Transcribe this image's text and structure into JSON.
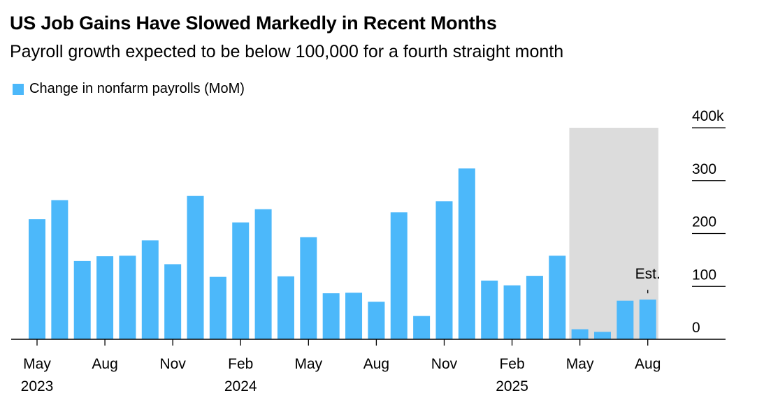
{
  "header": {
    "title": "US Job Gains Have Slowed Markedly in Recent Months",
    "subtitle": "Payroll growth expected to be below 100,000 for a fourth straight month"
  },
  "colors": {
    "bar": "#4cb8fa",
    "shade": "#dcdcdc",
    "axis": "#000000"
  },
  "chart_data": {
    "type": "bar",
    "title": "US Job Gains Have Slowed Markedly in Recent Months",
    "subtitle": "Payroll growth expected to be below 100,000 for a fourth straight month",
    "series": [
      {
        "name": "Change in nonfarm payrolls (MoM)",
        "values": [
          227,
          263,
          148,
          157,
          158,
          187,
          142,
          271,
          118,
          221,
          246,
          119,
          193,
          87,
          88,
          71,
          240,
          44,
          261,
          323,
          111,
          102,
          120,
          158,
          19,
          14,
          73,
          75
        ]
      }
    ],
    "categories": [
      "May 2023",
      "Jun 2023",
      "Jul 2023",
      "Aug 2023",
      "Sep 2023",
      "Oct 2023",
      "Nov 2023",
      "Dec 2023",
      "Jan 2024",
      "Feb 2024",
      "Mar 2024",
      "Apr 2024",
      "May 2024",
      "Jun 2024",
      "Jul 2024",
      "Aug 2024",
      "Sep 2024",
      "Oct 2024",
      "Nov 2024",
      "Dec 2024",
      "Jan 2025",
      "Feb 2025",
      "Mar 2025",
      "Apr 2025",
      "May 2025",
      "Jun 2025",
      "Jul 2025",
      "Aug 2025"
    ],
    "x_tick_labels": [
      {
        "index": 0,
        "month": "May",
        "year": "2023"
      },
      {
        "index": 3,
        "month": "Aug",
        "year": ""
      },
      {
        "index": 6,
        "month": "Nov",
        "year": ""
      },
      {
        "index": 9,
        "month": "Feb",
        "year": "2024"
      },
      {
        "index": 12,
        "month": "May",
        "year": ""
      },
      {
        "index": 15,
        "month": "Aug",
        "year": ""
      },
      {
        "index": 18,
        "month": "Nov",
        "year": ""
      },
      {
        "index": 21,
        "month": "Feb",
        "year": "2025"
      },
      {
        "index": 24,
        "month": "May",
        "year": ""
      },
      {
        "index": 27,
        "month": "Aug",
        "year": ""
      }
    ],
    "y_ticks": [
      {
        "value": 0,
        "label": "0"
      },
      {
        "value": 100,
        "label": "100"
      },
      {
        "value": 200,
        "label": "200"
      },
      {
        "value": 300,
        "label": "300"
      },
      {
        "value": 400,
        "label": "400k"
      }
    ],
    "ylim": [
      0,
      400
    ],
    "y_axis_side": "right",
    "shaded_range": {
      "start_index": 24,
      "end_index": 27
    },
    "annotation": {
      "index": 27,
      "text": "Est."
    },
    "legend_position": "top-left",
    "grid": false
  }
}
